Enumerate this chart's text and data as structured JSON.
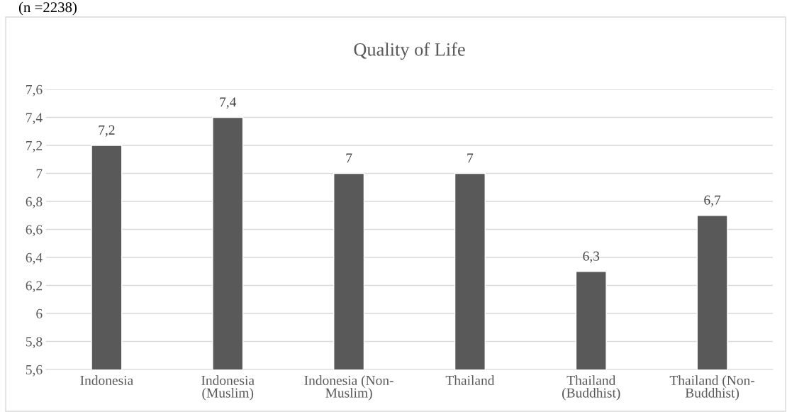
{
  "chart_data": {
    "type": "bar",
    "title": "Quality of Life",
    "annotations": [
      "(n =2238)"
    ],
    "categories": [
      "Indonesia",
      "Indonesia\n(Muslim)",
      "Indonesia (Non-\nMuslim)",
      "Thailand",
      "Thailand\n(Buddhist)",
      "Thailand (Non-\nBuddhist)"
    ],
    "values": [
      7.2,
      7.4,
      7.0,
      7.0,
      6.3,
      6.7
    ],
    "value_labels": [
      "7,2",
      "7,4",
      "7",
      "7",
      "6,3",
      "6,7"
    ],
    "color": "#595959",
    "ylim": [
      5.6,
      7.6
    ],
    "yticks": [
      {
        "value": 5.6,
        "label": "5,6"
      },
      {
        "value": 5.8,
        "label": "5,8"
      },
      {
        "value": 6,
        "label": "6"
      },
      {
        "value": 6.2,
        "label": "6,2"
      },
      {
        "value": 6.4,
        "label": "6,4"
      },
      {
        "value": 6.6,
        "label": "6,6"
      },
      {
        "value": 6.8,
        "label": "6,8"
      },
      {
        "value": 7,
        "label": "7"
      },
      {
        "value": 7.2,
        "label": "7,2"
      },
      {
        "value": 7.4,
        "label": "7,4"
      },
      {
        "value": 7.6,
        "label": "7,6"
      }
    ],
    "grid": "y",
    "legend": false
  }
}
